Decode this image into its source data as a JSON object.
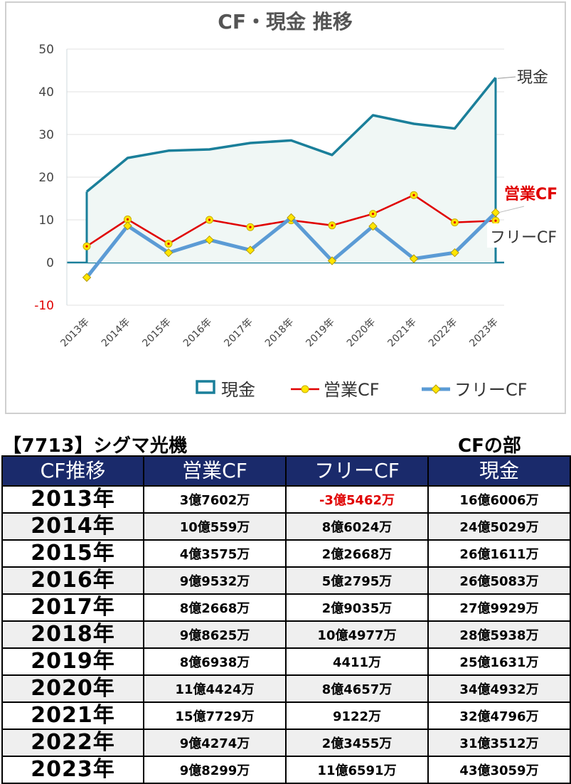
{
  "chart_data": {
    "type": "line",
    "title": "CF・現金 推移",
    "categories": [
      "2013年",
      "2014年",
      "2015年",
      "2016年",
      "2017年",
      "2018年",
      "2019年",
      "2020年",
      "2021年",
      "2022年",
      "2023年"
    ],
    "y_ticks": [
      "50",
      "40",
      "30",
      "20",
      "10",
      "0",
      "-10"
    ],
    "ylim": [
      -10,
      50
    ],
    "grid": true,
    "legend_position": "bottom",
    "series": [
      {
        "name": "現金",
        "style": "area",
        "color": "#1a7f9a",
        "fill": "#f0f7f5",
        "values": [
          16.6,
          24.5,
          26.2,
          26.5,
          28.0,
          28.6,
          25.2,
          34.5,
          32.5,
          31.4,
          43.3
        ]
      },
      {
        "name": "営業CF",
        "style": "line",
        "color": "#e00000",
        "marker_color": "#ffe600",
        "values": [
          3.8,
          10.1,
          4.4,
          10.0,
          8.3,
          9.9,
          8.7,
          11.4,
          15.8,
          9.4,
          9.8
        ]
      },
      {
        "name": "フリーCF",
        "style": "line",
        "color": "#5b9bd5",
        "marker_color": "#ffe600",
        "values": [
          -3.5,
          8.6,
          2.3,
          5.3,
          2.9,
          10.5,
          0.4,
          8.5,
          0.9,
          2.3,
          11.7
        ]
      }
    ],
    "end_labels": [
      "現金",
      "営業CF",
      "フリーCF"
    ]
  },
  "page": {
    "company_title": "【7713】シグマ光機",
    "section_title": "CFの部"
  },
  "table": {
    "headers": [
      "CF推移",
      "営業CF",
      "フリーCF",
      "現金"
    ],
    "rows": [
      {
        "year": "2013年",
        "operating": "3億7602万",
        "free": "-3億5462万",
        "cash": "16億6006万",
        "free_negative": true
      },
      {
        "year": "2014年",
        "operating": "10億559万",
        "free": "8億6024万",
        "cash": "24億5029万"
      },
      {
        "year": "2015年",
        "operating": "4億3575万",
        "free": "2億2668万",
        "cash": "26億1611万"
      },
      {
        "year": "2016年",
        "operating": "9億9532万",
        "free": "5億2795万",
        "cash": "26億5083万"
      },
      {
        "year": "2017年",
        "operating": "8億2668万",
        "free": "2億9035万",
        "cash": "27億9929万"
      },
      {
        "year": "2018年",
        "operating": "9億8625万",
        "free": "10億4977万",
        "cash": "28億5938万"
      },
      {
        "year": "2019年",
        "operating": "8億6938万",
        "free": "4411万",
        "cash": "25億1631万"
      },
      {
        "year": "2020年",
        "operating": "11億4424万",
        "free": "8億4657万",
        "cash": "34億4932万"
      },
      {
        "year": "2021年",
        "operating": "15億7729万",
        "free": "9122万",
        "cash": "32億4796万"
      },
      {
        "year": "2022年",
        "operating": "9億4274万",
        "free": "2億3455万",
        "cash": "31億3512万"
      },
      {
        "year": "2023年",
        "operating": "9億8299万",
        "free": "11億6591万",
        "cash": "43億3059万"
      }
    ]
  }
}
